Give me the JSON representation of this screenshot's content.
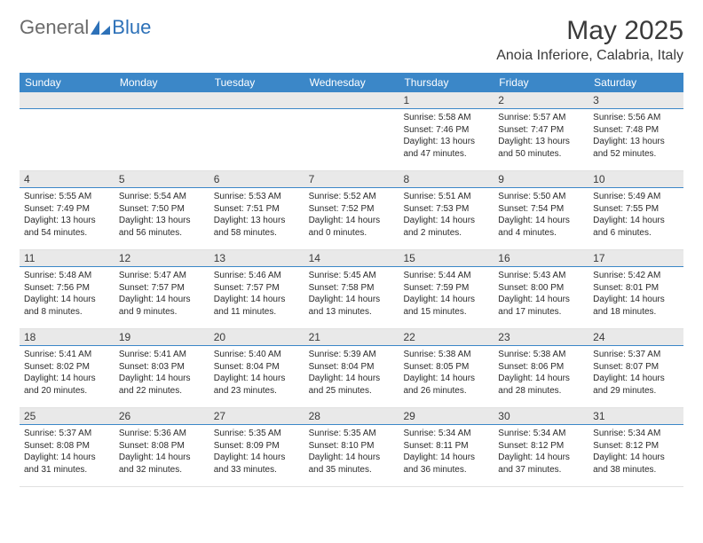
{
  "logo": {
    "text1": "General",
    "text2": "Blue"
  },
  "title": "May 2025",
  "location": "Anoia Inferiore, Calabria, Italy",
  "colors": {
    "header_bg": "#3b87c8",
    "header_text": "#ffffff",
    "daynum_bg": "#e9e9e9",
    "daynum_border": "#3b87c8",
    "body_text": "#2a2a2a",
    "logo_gray": "#6b6b6b",
    "logo_blue": "#2d71b8"
  },
  "daysOfWeek": [
    "Sunday",
    "Monday",
    "Tuesday",
    "Wednesday",
    "Thursday",
    "Friday",
    "Saturday"
  ],
  "weeks": [
    [
      {
        "n": "",
        "sr": "",
        "ss": "",
        "dl": ""
      },
      {
        "n": "",
        "sr": "",
        "ss": "",
        "dl": ""
      },
      {
        "n": "",
        "sr": "",
        "ss": "",
        "dl": ""
      },
      {
        "n": "",
        "sr": "",
        "ss": "",
        "dl": ""
      },
      {
        "n": "1",
        "sr": "Sunrise: 5:58 AM",
        "ss": "Sunset: 7:46 PM",
        "dl": "Daylight: 13 hours and 47 minutes."
      },
      {
        "n": "2",
        "sr": "Sunrise: 5:57 AM",
        "ss": "Sunset: 7:47 PM",
        "dl": "Daylight: 13 hours and 50 minutes."
      },
      {
        "n": "3",
        "sr": "Sunrise: 5:56 AM",
        "ss": "Sunset: 7:48 PM",
        "dl": "Daylight: 13 hours and 52 minutes."
      }
    ],
    [
      {
        "n": "4",
        "sr": "Sunrise: 5:55 AM",
        "ss": "Sunset: 7:49 PM",
        "dl": "Daylight: 13 hours and 54 minutes."
      },
      {
        "n": "5",
        "sr": "Sunrise: 5:54 AM",
        "ss": "Sunset: 7:50 PM",
        "dl": "Daylight: 13 hours and 56 minutes."
      },
      {
        "n": "6",
        "sr": "Sunrise: 5:53 AM",
        "ss": "Sunset: 7:51 PM",
        "dl": "Daylight: 13 hours and 58 minutes."
      },
      {
        "n": "7",
        "sr": "Sunrise: 5:52 AM",
        "ss": "Sunset: 7:52 PM",
        "dl": "Daylight: 14 hours and 0 minutes."
      },
      {
        "n": "8",
        "sr": "Sunrise: 5:51 AM",
        "ss": "Sunset: 7:53 PM",
        "dl": "Daylight: 14 hours and 2 minutes."
      },
      {
        "n": "9",
        "sr": "Sunrise: 5:50 AM",
        "ss": "Sunset: 7:54 PM",
        "dl": "Daylight: 14 hours and 4 minutes."
      },
      {
        "n": "10",
        "sr": "Sunrise: 5:49 AM",
        "ss": "Sunset: 7:55 PM",
        "dl": "Daylight: 14 hours and 6 minutes."
      }
    ],
    [
      {
        "n": "11",
        "sr": "Sunrise: 5:48 AM",
        "ss": "Sunset: 7:56 PM",
        "dl": "Daylight: 14 hours and 8 minutes."
      },
      {
        "n": "12",
        "sr": "Sunrise: 5:47 AM",
        "ss": "Sunset: 7:57 PM",
        "dl": "Daylight: 14 hours and 9 minutes."
      },
      {
        "n": "13",
        "sr": "Sunrise: 5:46 AM",
        "ss": "Sunset: 7:57 PM",
        "dl": "Daylight: 14 hours and 11 minutes."
      },
      {
        "n": "14",
        "sr": "Sunrise: 5:45 AM",
        "ss": "Sunset: 7:58 PM",
        "dl": "Daylight: 14 hours and 13 minutes."
      },
      {
        "n": "15",
        "sr": "Sunrise: 5:44 AM",
        "ss": "Sunset: 7:59 PM",
        "dl": "Daylight: 14 hours and 15 minutes."
      },
      {
        "n": "16",
        "sr": "Sunrise: 5:43 AM",
        "ss": "Sunset: 8:00 PM",
        "dl": "Daylight: 14 hours and 17 minutes."
      },
      {
        "n": "17",
        "sr": "Sunrise: 5:42 AM",
        "ss": "Sunset: 8:01 PM",
        "dl": "Daylight: 14 hours and 18 minutes."
      }
    ],
    [
      {
        "n": "18",
        "sr": "Sunrise: 5:41 AM",
        "ss": "Sunset: 8:02 PM",
        "dl": "Daylight: 14 hours and 20 minutes."
      },
      {
        "n": "19",
        "sr": "Sunrise: 5:41 AM",
        "ss": "Sunset: 8:03 PM",
        "dl": "Daylight: 14 hours and 22 minutes."
      },
      {
        "n": "20",
        "sr": "Sunrise: 5:40 AM",
        "ss": "Sunset: 8:04 PM",
        "dl": "Daylight: 14 hours and 23 minutes."
      },
      {
        "n": "21",
        "sr": "Sunrise: 5:39 AM",
        "ss": "Sunset: 8:04 PM",
        "dl": "Daylight: 14 hours and 25 minutes."
      },
      {
        "n": "22",
        "sr": "Sunrise: 5:38 AM",
        "ss": "Sunset: 8:05 PM",
        "dl": "Daylight: 14 hours and 26 minutes."
      },
      {
        "n": "23",
        "sr": "Sunrise: 5:38 AM",
        "ss": "Sunset: 8:06 PM",
        "dl": "Daylight: 14 hours and 28 minutes."
      },
      {
        "n": "24",
        "sr": "Sunrise: 5:37 AM",
        "ss": "Sunset: 8:07 PM",
        "dl": "Daylight: 14 hours and 29 minutes."
      }
    ],
    [
      {
        "n": "25",
        "sr": "Sunrise: 5:37 AM",
        "ss": "Sunset: 8:08 PM",
        "dl": "Daylight: 14 hours and 31 minutes."
      },
      {
        "n": "26",
        "sr": "Sunrise: 5:36 AM",
        "ss": "Sunset: 8:08 PM",
        "dl": "Daylight: 14 hours and 32 minutes."
      },
      {
        "n": "27",
        "sr": "Sunrise: 5:35 AM",
        "ss": "Sunset: 8:09 PM",
        "dl": "Daylight: 14 hours and 33 minutes."
      },
      {
        "n": "28",
        "sr": "Sunrise: 5:35 AM",
        "ss": "Sunset: 8:10 PM",
        "dl": "Daylight: 14 hours and 35 minutes."
      },
      {
        "n": "29",
        "sr": "Sunrise: 5:34 AM",
        "ss": "Sunset: 8:11 PM",
        "dl": "Daylight: 14 hours and 36 minutes."
      },
      {
        "n": "30",
        "sr": "Sunrise: 5:34 AM",
        "ss": "Sunset: 8:12 PM",
        "dl": "Daylight: 14 hours and 37 minutes."
      },
      {
        "n": "31",
        "sr": "Sunrise: 5:34 AM",
        "ss": "Sunset: 8:12 PM",
        "dl": "Daylight: 14 hours and 38 minutes."
      }
    ]
  ]
}
